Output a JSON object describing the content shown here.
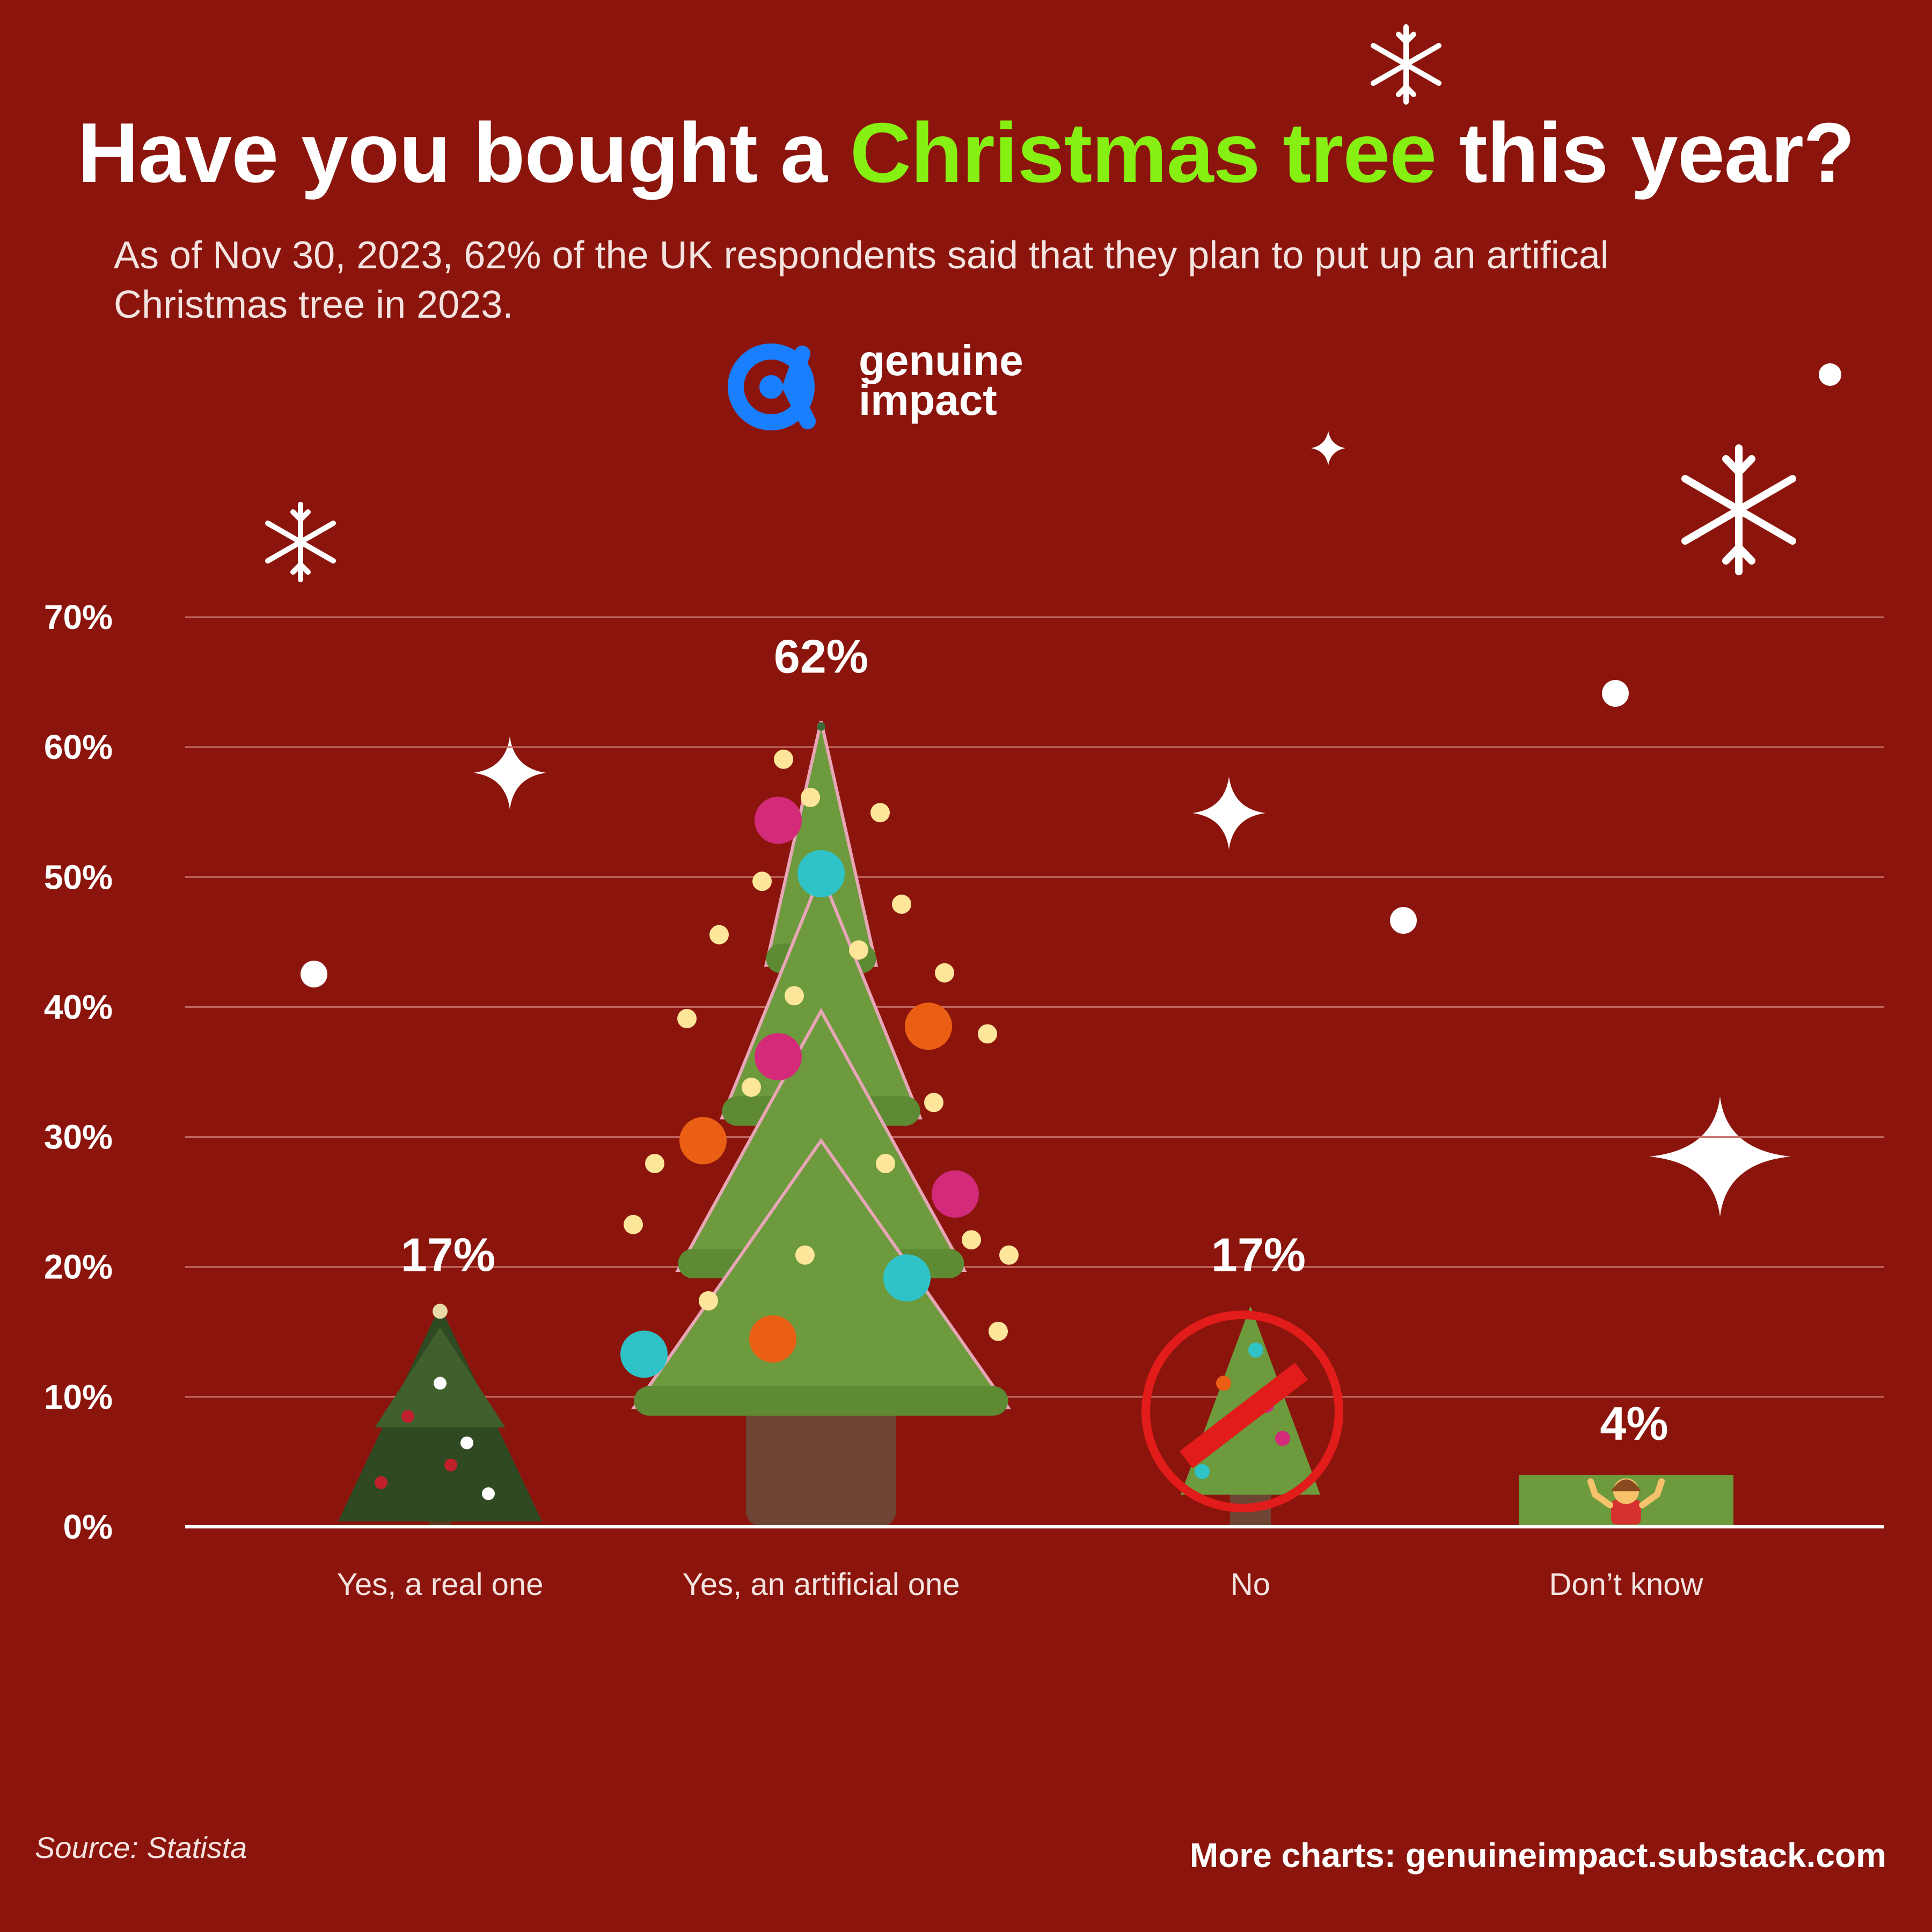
{
  "title": {
    "before": "Have you bought a ",
    "highlight": "Christmas tree",
    "after": " this year?"
  },
  "subtitle_line1": "As of Nov 30, 2023, 62% of the UK respondents said that they plan to put up an artifical",
  "subtitle_line2": "Christmas tree in 2023.",
  "logo": {
    "line1": "genuine",
    "line2": "impact",
    "icon": "genuine-impact-logo-icon"
  },
  "colors": {
    "background": "#8b150c",
    "highlight": "#86f013",
    "tree": "#6c9a3c",
    "logo_blue": "#1a7fff"
  },
  "footer": {
    "source": "Source: Statista",
    "more": "More charts: genuineimpact.substack.com"
  },
  "chart_data": {
    "type": "bar",
    "categories": [
      "Yes, a real one",
      "Yes, an artificial one",
      "No",
      "Don’t know"
    ],
    "values": [
      17,
      62,
      17,
      4
    ],
    "value_labels": [
      "17%",
      "62%",
      "17%",
      "4%"
    ],
    "ylim": [
      0,
      70
    ],
    "yticks": [
      0,
      10,
      20,
      30,
      40,
      50,
      60,
      70
    ],
    "ytick_labels": [
      "0%",
      "10%",
      "20%",
      "30%",
      "40%",
      "50%",
      "60%",
      "70%"
    ],
    "grid": true,
    "bar_icons": [
      "real-tree-icon",
      "artificial-tree-icon",
      "no-tree-icon",
      "shrug-icon"
    ]
  }
}
